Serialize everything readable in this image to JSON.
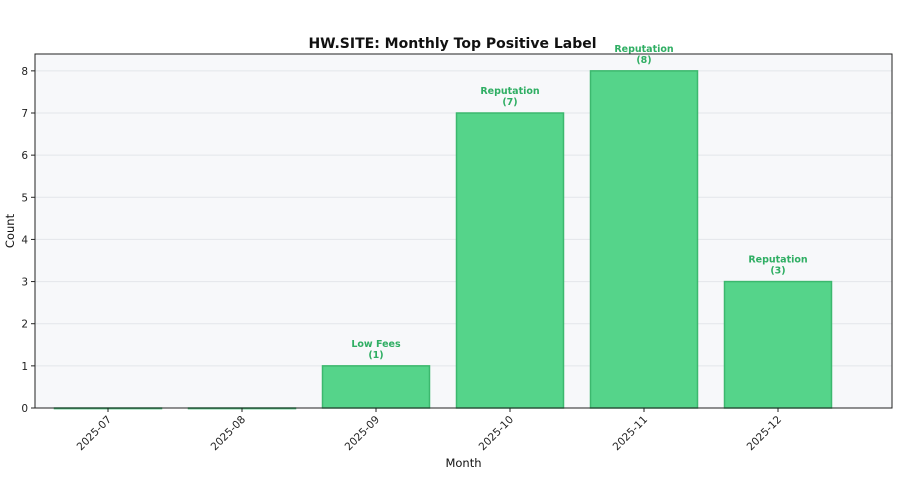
{
  "chart_data": {
    "type": "bar",
    "title": "HW.SITE: Monthly Top Positive Label",
    "xlabel": "Month",
    "ylabel": "Count",
    "categories": [
      "2025-07",
      "2025-08",
      "2025-09",
      "2025-10",
      "2025-11",
      "2025-12"
    ],
    "values": [
      0,
      0,
      1,
      7,
      8,
      3
    ],
    "bar_labels": [
      null,
      null,
      "Low Fees",
      "Reputation",
      "Reputation",
      "Reputation"
    ],
    "bar_counts": [
      null,
      null,
      "(1)",
      "(7)",
      "(8)",
      "(3)"
    ],
    "ylim": [
      0,
      8.4
    ],
    "yticks": [
      "0",
      "1",
      "2",
      "3",
      "4",
      "5",
      "6",
      "7",
      "8"
    ],
    "grid": true,
    "colors": {
      "bar_fill": "#55d48a",
      "bar_edge": "#3cb86e",
      "label_text": "#2fae63",
      "plot_background": "#f7f8fa",
      "grid": "#e3e6ea"
    }
  }
}
